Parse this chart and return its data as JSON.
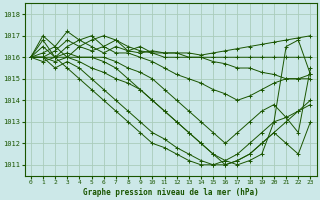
{
  "title": "Graphe pression niveau de la mer (hPa)",
  "background_color": "#cce8e8",
  "grid_color": "#aaccbb",
  "line_color": "#1a5500",
  "xlim": [
    -0.5,
    23.5
  ],
  "ylim": [
    1010.5,
    1018.5
  ],
  "yticks": [
    1011,
    1012,
    1013,
    1014,
    1015,
    1016,
    1017,
    1018
  ],
  "xticks": [
    0,
    1,
    2,
    3,
    4,
    5,
    6,
    7,
    8,
    9,
    10,
    11,
    12,
    13,
    14,
    15,
    16,
    17,
    18,
    19,
    20,
    21,
    22,
    23
  ],
  "series": [
    [
      1016.0,
      1016.8,
      1016.0,
      1016.5,
      1016.8,
      1016.5,
      1016.2,
      1016.5,
      1016.3,
      1016.2,
      1016.3,
      1016.2,
      1016.2,
      1016.2,
      1016.1,
      1016.2,
      1016.3,
      1016.4,
      1016.5,
      1016.6,
      1016.7,
      1016.8,
      1016.9,
      1017.0
    ],
    [
      1016.0,
      1016.0,
      1016.3,
      1016.8,
      1016.5,
      1016.8,
      1017.0,
      1016.8,
      1016.5,
      1016.3,
      1016.2,
      1016.0,
      1016.0,
      1016.0,
      1016.0,
      1016.0,
      1016.0,
      1016.0,
      1016.0,
      1016.0,
      1016.0,
      1016.0,
      1016.0,
      1016.0
    ],
    [
      1016.0,
      1017.0,
      1016.5,
      1017.2,
      1016.8,
      1017.0,
      1016.5,
      1016.8,
      1016.3,
      1016.5,
      1016.2,
      1016.2,
      1016.2,
      1016.0,
      1016.0,
      1015.8,
      1015.7,
      1015.5,
      1015.5,
      1015.3,
      1015.2,
      1015.0,
      1015.0,
      1015.0
    ],
    [
      1016.0,
      1016.2,
      1016.5,
      1016.0,
      1016.5,
      1016.3,
      1016.5,
      1016.2,
      1016.2,
      1016.0,
      1015.8,
      1015.5,
      1015.2,
      1015.0,
      1014.8,
      1014.5,
      1014.3,
      1014.0,
      1014.2,
      1014.5,
      1014.8,
      1015.0,
      1015.0,
      1015.2
    ],
    [
      1016.0,
      1015.8,
      1016.0,
      1016.2,
      1016.0,
      1016.0,
      1016.0,
      1015.8,
      1015.5,
      1015.3,
      1015.0,
      1014.5,
      1014.0,
      1013.5,
      1013.0,
      1012.5,
      1012.0,
      1012.5,
      1013.0,
      1013.5,
      1013.8,
      1013.2,
      1012.5,
      1015.5
    ],
    [
      1016.0,
      1016.0,
      1016.0,
      1016.0,
      1016.0,
      1016.0,
      1015.8,
      1015.5,
      1015.0,
      1014.5,
      1014.0,
      1013.5,
      1013.0,
      1012.5,
      1012.0,
      1011.5,
      1011.2,
      1011.0,
      1011.2,
      1011.5,
      1013.0,
      1016.5,
      1016.8,
      1015.2
    ],
    [
      1016.0,
      1016.0,
      1015.8,
      1016.0,
      1015.8,
      1015.5,
      1015.3,
      1015.0,
      1014.8,
      1014.5,
      1014.0,
      1013.5,
      1013.0,
      1012.5,
      1012.0,
      1011.5,
      1011.0,
      1011.2,
      1011.5,
      1012.0,
      1012.5,
      1013.0,
      1013.5,
      1014.0
    ],
    [
      1016.0,
      1016.0,
      1015.5,
      1015.8,
      1015.5,
      1015.0,
      1014.5,
      1014.0,
      1013.5,
      1013.0,
      1012.5,
      1012.2,
      1011.8,
      1011.5,
      1011.2,
      1011.0,
      1011.0,
      1011.2,
      1011.5,
      1012.0,
      1012.5,
      1012.0,
      1011.5,
      1013.0
    ],
    [
      1016.0,
      1016.5,
      1016.0,
      1015.5,
      1015.0,
      1014.5,
      1014.0,
      1013.5,
      1013.0,
      1012.5,
      1012.0,
      1011.8,
      1011.5,
      1011.2,
      1011.0,
      1011.0,
      1011.2,
      1011.5,
      1012.0,
      1012.5,
      1013.0,
      1013.2,
      1013.5,
      1013.8
    ]
  ]
}
